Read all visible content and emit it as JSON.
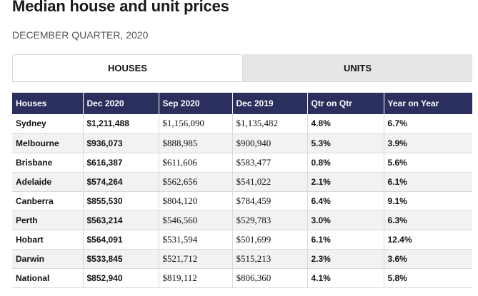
{
  "page": {
    "title": "Median house and unit prices",
    "subtitle": "DECEMBER QUARTER, 2020"
  },
  "tabs": [
    {
      "label": "HOUSES",
      "active": true
    },
    {
      "label": "UNITS",
      "active": false
    }
  ],
  "table": {
    "headers": [
      "Houses",
      "Dec 2020",
      "Sep 2020",
      "Dec 2019",
      "Qtr on Qtr",
      "Year on Year"
    ],
    "rows": [
      [
        "Sydney",
        "$1,211,488",
        "$1,156,090",
        "$1,135,482",
        "4.8%",
        "6.7%"
      ],
      [
        "Melbourne",
        "$936,073",
        "$888,985",
        "$900,940",
        "5.3%",
        "3.9%"
      ],
      [
        "Brisbane",
        "$616,387",
        "$611,606",
        "$583,477",
        "0.8%",
        "5.6%"
      ],
      [
        "Adelaide",
        "$574,264",
        "$562,656",
        "$541,022",
        "2.1%",
        "6.1%"
      ],
      [
        "Canberra",
        "$855,530",
        "$804,120",
        "$784,459",
        "6.4%",
        "9.1%"
      ],
      [
        "Perth",
        "$563,214",
        "$546,560",
        "$529,783",
        "3.0%",
        "6.3%"
      ],
      [
        "Hobart",
        "$564,091",
        "$531,594",
        "$501,699",
        "6.1%",
        "12.4%"
      ],
      [
        "Darwin",
        "$533,845",
        "$521,712",
        "$515,213",
        "2.3%",
        "3.6%"
      ],
      [
        "National",
        "$852,940",
        "$819,112",
        "$806,360",
        "4.1%",
        "5.8%"
      ]
    ]
  },
  "colors": {
    "header_bg": "#2b2f5e",
    "stripe_bg": "#f2f2f2",
    "inactive_tab_bg": "#e6e6e6"
  }
}
